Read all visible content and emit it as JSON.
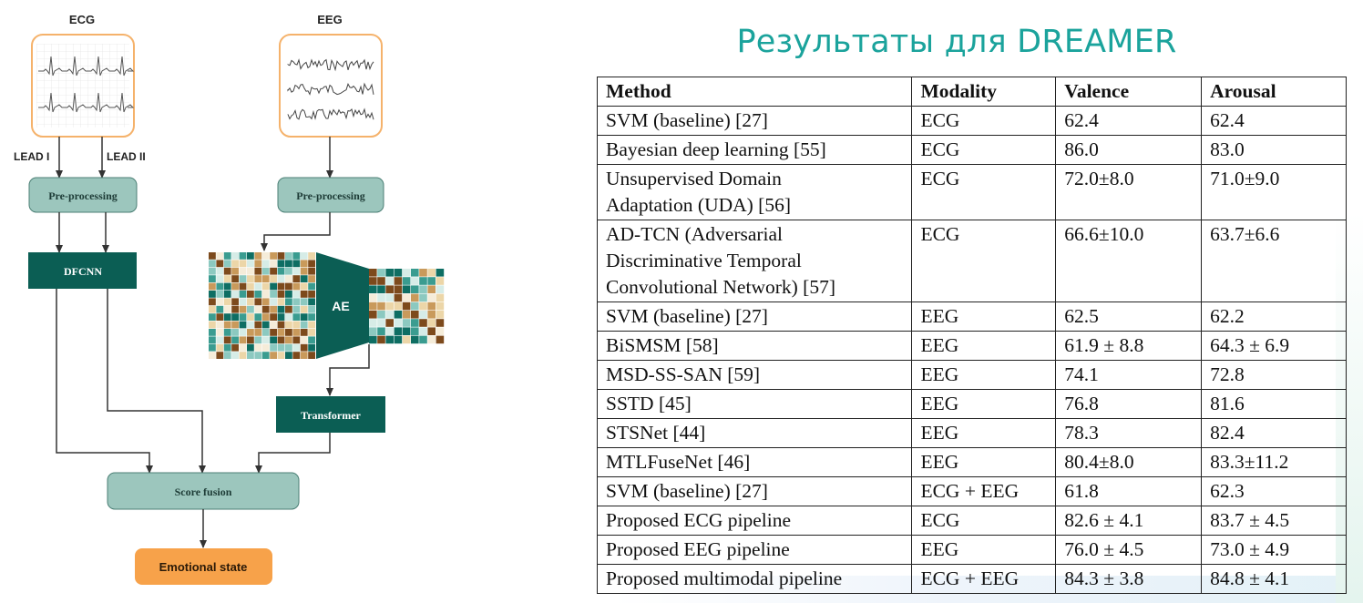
{
  "slide": {
    "title": "Результаты для DREAMER"
  },
  "diagram": {
    "ecg_label": "ECG",
    "eeg_label": "EEG",
    "lead1_label": "LEAD I",
    "lead2_label": "LEAD II",
    "ecg_preprocessing_label": "Pre-processing",
    "eeg_preprocessing_label": "Pre-processing",
    "dfcnn_label": "DFCNN",
    "ae_label": "AE",
    "transformer_label": "Transformer",
    "score_fusion_label": "Score fusion",
    "output_label": "Emotional state",
    "colors": {
      "signal_border": "#f5b26b",
      "preprocess_fill": "#9cc6bd",
      "dark_green": "#0b5e54",
      "output_fill": "#f7a24a"
    }
  },
  "table": {
    "headers": [
      "Method",
      "Modality",
      "Valence",
      "Arousal"
    ],
    "rows": [
      {
        "method": "SVM (baseline) [27]",
        "modality": "ECG",
        "valence": "62.4",
        "arousal": "62.4"
      },
      {
        "method": "Bayesian deep learning [55]",
        "modality": "ECG",
        "valence": "86.0",
        "arousal": "83.0"
      },
      {
        "method": "Unsupervised Domain\nAdaptation (UDA) [56]",
        "modality": "ECG",
        "valence": "72.0±8.0",
        "arousal": "71.0±9.0"
      },
      {
        "method": "AD-TCN (Adversarial\nDiscriminative Temporal\nConvolutional Network) [57]",
        "modality": "ECG",
        "valence": "66.6±10.0",
        "arousal": "63.7±6.6"
      },
      {
        "method": "SVM (baseline) [27]",
        "modality": "EEG",
        "valence": "62.5",
        "arousal": "62.2"
      },
      {
        "method": "BiSMSM [58]",
        "modality": "EEG",
        "valence": "61.9 ± 8.8",
        "arousal": "64.3 ± 6.9"
      },
      {
        "method": "MSD-SS-SAN [59]",
        "modality": "EEG",
        "valence": "74.1",
        "arousal": "72.8"
      },
      {
        "method": "SSTD [45]",
        "modality": "EEG",
        "valence": "76.8",
        "arousal": "81.6"
      },
      {
        "method": "STSNet [44]",
        "modality": "EEG",
        "valence": "78.3",
        "arousal": "82.4"
      },
      {
        "method": "MTLFuseNet [46]",
        "modality": "EEG",
        "valence": "80.4±8.0",
        "arousal": "83.3±11.2"
      },
      {
        "method": "SVM (baseline) [27]",
        "modality": "ECG + EEG",
        "valence": "61.8",
        "arousal": "62.3"
      },
      {
        "method": "Proposed ECG pipeline",
        "modality": "ECG",
        "valence": "82.6 ± 4.1",
        "arousal": "83.7 ± 4.5"
      },
      {
        "method": "Proposed EEG pipeline",
        "modality": "EEG",
        "valence": "76.0 ± 4.5",
        "arousal": "73.0 ± 4.9"
      },
      {
        "method": "Proposed multimodal pipeline",
        "modality": "ECG + EEG",
        "valence": "84.3 ± 3.8",
        "arousal": "84.8 ± 4.1"
      }
    ]
  }
}
